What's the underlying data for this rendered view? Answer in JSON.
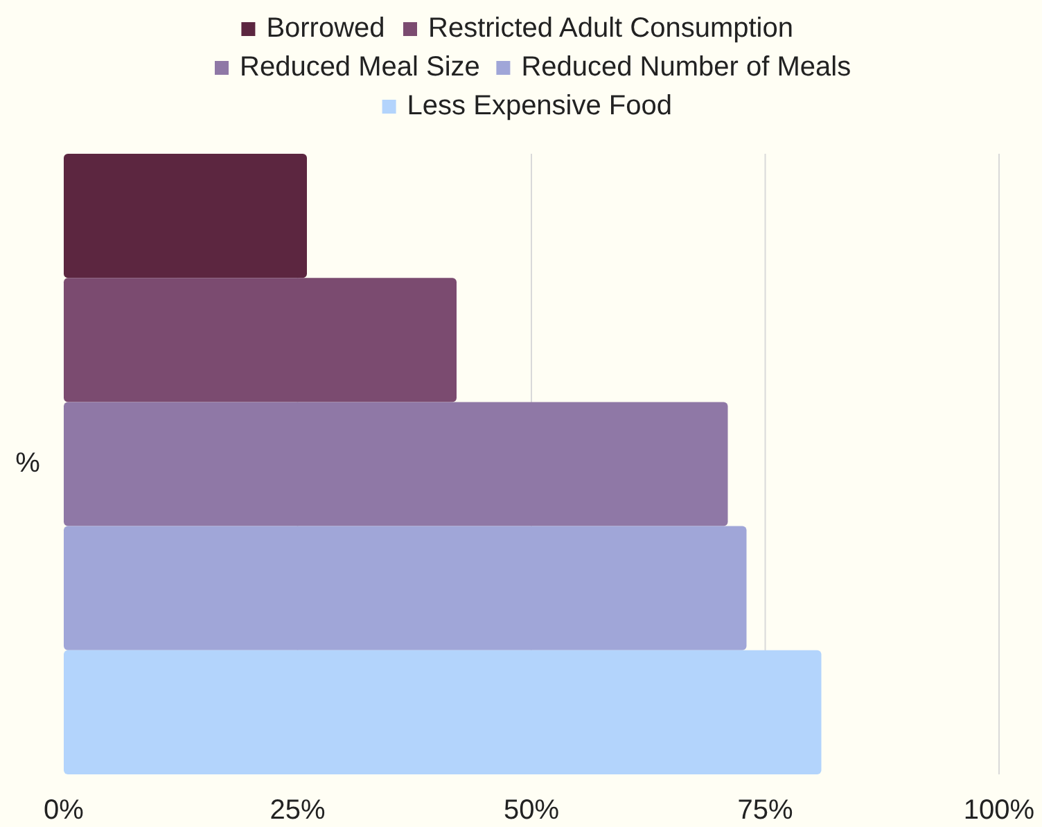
{
  "chart_data": {
    "type": "bar",
    "orientation": "horizontal",
    "categories": [
      null
    ],
    "ylabel": "%",
    "series": [
      {
        "name": "Borrowed",
        "color": "#5c2640",
        "values": [
          26
        ]
      },
      {
        "name": "Restricted Adult Consumption",
        "color": "#7b4b70",
        "values": [
          42
        ]
      },
      {
        "name": "Reduced Meal Size",
        "color": "#8f78a6",
        "values": [
          71
        ]
      },
      {
        "name": "Reduced Number of Meals",
        "color": "#a0a6d8",
        "values": [
          73
        ]
      },
      {
        "name": "Less Expensive Food",
        "color": "#b3d4fc",
        "values": [
          81
        ]
      }
    ],
    "xlim": [
      0,
      100
    ],
    "xticks": [
      {
        "value": 0,
        "label": "0%"
      },
      {
        "value": 25,
        "label": "25%"
      },
      {
        "value": 50,
        "label": "50%"
      },
      {
        "value": 75,
        "label": "75%"
      },
      {
        "value": 100,
        "label": "100%"
      }
    ],
    "grid": "x",
    "legend": "top"
  }
}
